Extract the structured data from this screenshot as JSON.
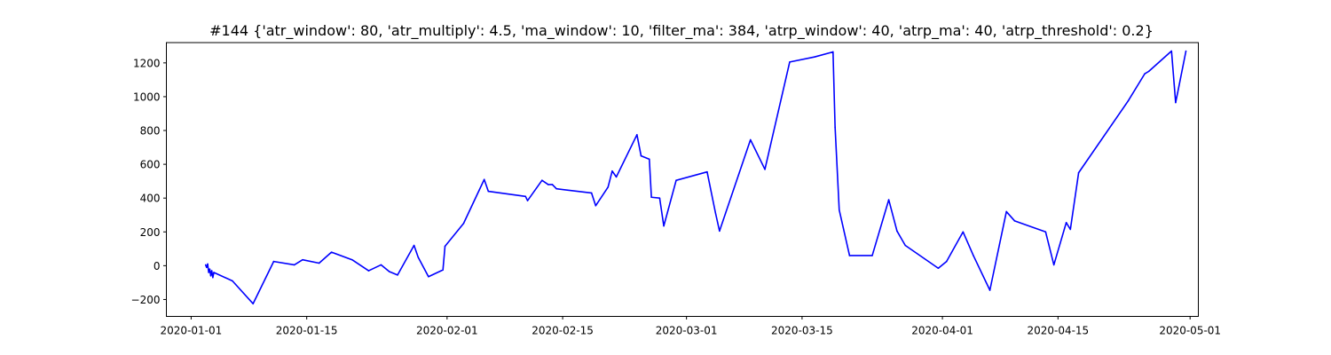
{
  "chart_data": {
    "type": "line",
    "title": "#144 {'atr_window': 80, 'atr_multiply': 4.5, 'ma_window': 10, 'filter_ma': 384, 'atrp_window': 40, 'atrp_ma': 40, 'atrp_threshold': 0.2}",
    "xlabel": "",
    "ylabel": "",
    "xlim": [
      "2019-12-29",
      "2020-05-02"
    ],
    "ylim": [
      -300,
      1320
    ],
    "grid": false,
    "x_ticks": [
      {
        "date": "2020-01-01",
        "label": "2020-01-01"
      },
      {
        "date": "2020-01-15",
        "label": "2020-01-15"
      },
      {
        "date": "2020-02-01",
        "label": "2020-02-01"
      },
      {
        "date": "2020-02-15",
        "label": "2020-02-15"
      },
      {
        "date": "2020-03-01",
        "label": "2020-03-01"
      },
      {
        "date": "2020-03-15",
        "label": "2020-03-15"
      },
      {
        "date": "2020-04-01",
        "label": "2020-04-01"
      },
      {
        "date": "2020-04-15",
        "label": "2020-04-15"
      },
      {
        "date": "2020-05-01",
        "label": "2020-05-01"
      }
    ],
    "y_ticks": [
      {
        "value": -200,
        "label": "−200"
      },
      {
        "value": 0,
        "label": "0"
      },
      {
        "value": 200,
        "label": "200"
      },
      {
        "value": 400,
        "label": "400"
      },
      {
        "value": 600,
        "label": "600"
      },
      {
        "value": 800,
        "label": "800"
      },
      {
        "value": 1000,
        "label": "1000"
      },
      {
        "value": 1200,
        "label": "1200"
      }
    ],
    "series": [
      {
        "color": "#0000ff",
        "points": [
          [
            "2020-01-02 18:00",
            5
          ],
          [
            "2020-01-02 21:00",
            -10
          ],
          [
            "2020-01-03 00:00",
            10
          ],
          [
            "2020-01-03 03:00",
            -40
          ],
          [
            "2020-01-03 06:00",
            -20
          ],
          [
            "2020-01-03 09:00",
            -60
          ],
          [
            "2020-01-03 12:00",
            -30
          ],
          [
            "2020-01-03 15:00",
            -70
          ],
          [
            "2020-01-03 18:00",
            -40
          ],
          [
            "2020-01-06 00:00",
            -90
          ],
          [
            "2020-01-08 12:00",
            -225
          ],
          [
            "2020-01-11 00:00",
            25
          ],
          [
            "2020-01-13 12:00",
            5
          ],
          [
            "2020-01-14 12:00",
            35
          ],
          [
            "2020-01-16 12:00",
            15
          ],
          [
            "2020-01-18 00:00",
            80
          ],
          [
            "2020-01-20 12:00",
            35
          ],
          [
            "2020-01-22 12:00",
            -30
          ],
          [
            "2020-01-24 00:00",
            5
          ],
          [
            "2020-01-25 00:00",
            -35
          ],
          [
            "2020-01-26 00:00",
            -55
          ],
          [
            "2020-01-28 00:00",
            120
          ],
          [
            "2020-01-28 12:00",
            50
          ],
          [
            "2020-01-29 18:00",
            -65
          ],
          [
            "2020-01-31 12:00",
            -25
          ],
          [
            "2020-01-31 18:00",
            115
          ],
          [
            "2020-02-03 00:00",
            250
          ],
          [
            "2020-02-05 12:00",
            510
          ],
          [
            "2020-02-06 00:00",
            440
          ],
          [
            "2020-02-10 12:00",
            410
          ],
          [
            "2020-02-10 18:00",
            385
          ],
          [
            "2020-02-12 12:00",
            505
          ],
          [
            "2020-02-13 06:00",
            480
          ],
          [
            "2020-02-13 18:00",
            480
          ],
          [
            "2020-02-14 06:00",
            455
          ],
          [
            "2020-02-18 12:00",
            430
          ],
          [
            "2020-02-19 00:00",
            355
          ],
          [
            "2020-02-20 12:00",
            465
          ],
          [
            "2020-02-21 00:00",
            560
          ],
          [
            "2020-02-21 12:00",
            525
          ],
          [
            "2020-02-24 00:00",
            775
          ],
          [
            "2020-02-24 12:00",
            650
          ],
          [
            "2020-02-25 12:00",
            630
          ],
          [
            "2020-02-25 18:00",
            405
          ],
          [
            "2020-02-26 18:00",
            400
          ],
          [
            "2020-02-27 06:00",
            235
          ],
          [
            "2020-02-28 18:00",
            505
          ],
          [
            "2020-03-03 12:00",
            555
          ],
          [
            "2020-03-04 12:00",
            315
          ],
          [
            "2020-03-05 00:00",
            205
          ],
          [
            "2020-03-08 18:00",
            745
          ],
          [
            "2020-03-10 12:00",
            570
          ],
          [
            "2020-03-13 12:00",
            1205
          ],
          [
            "2020-03-16 12:00",
            1235
          ],
          [
            "2020-03-18 18:00",
            1265
          ],
          [
            "2020-03-19 00:00",
            820
          ],
          [
            "2020-03-19 12:00",
            330
          ],
          [
            "2020-03-20 18:00",
            60
          ],
          [
            "2020-03-23 12:00",
            60
          ],
          [
            "2020-03-25 12:00",
            390
          ],
          [
            "2020-03-26 12:00",
            205
          ],
          [
            "2020-03-27 12:00",
            120
          ],
          [
            "2020-03-31 12:00",
            -15
          ],
          [
            "2020-04-01 12:00",
            25
          ],
          [
            "2020-04-03 12:00",
            200
          ],
          [
            "2020-04-04 18:00",
            60
          ],
          [
            "2020-04-06 18:00",
            -145
          ],
          [
            "2020-04-08 18:00",
            320
          ],
          [
            "2020-04-09 18:00",
            265
          ],
          [
            "2020-04-13 12:00",
            200
          ],
          [
            "2020-04-14 12:00",
            5
          ],
          [
            "2020-04-16 00:00",
            255
          ],
          [
            "2020-04-16 12:00",
            215
          ],
          [
            "2020-04-17 12:00",
            550
          ],
          [
            "2020-04-23 12:00",
            975
          ],
          [
            "2020-04-25 12:00",
            1135
          ],
          [
            "2020-04-26 00:00",
            1150
          ],
          [
            "2020-04-28 18:00",
            1270
          ],
          [
            "2020-04-29 06:00",
            965
          ],
          [
            "2020-04-29 12:00",
            1025
          ],
          [
            "2020-04-30 12:00",
            1270
          ]
        ]
      }
    ]
  }
}
